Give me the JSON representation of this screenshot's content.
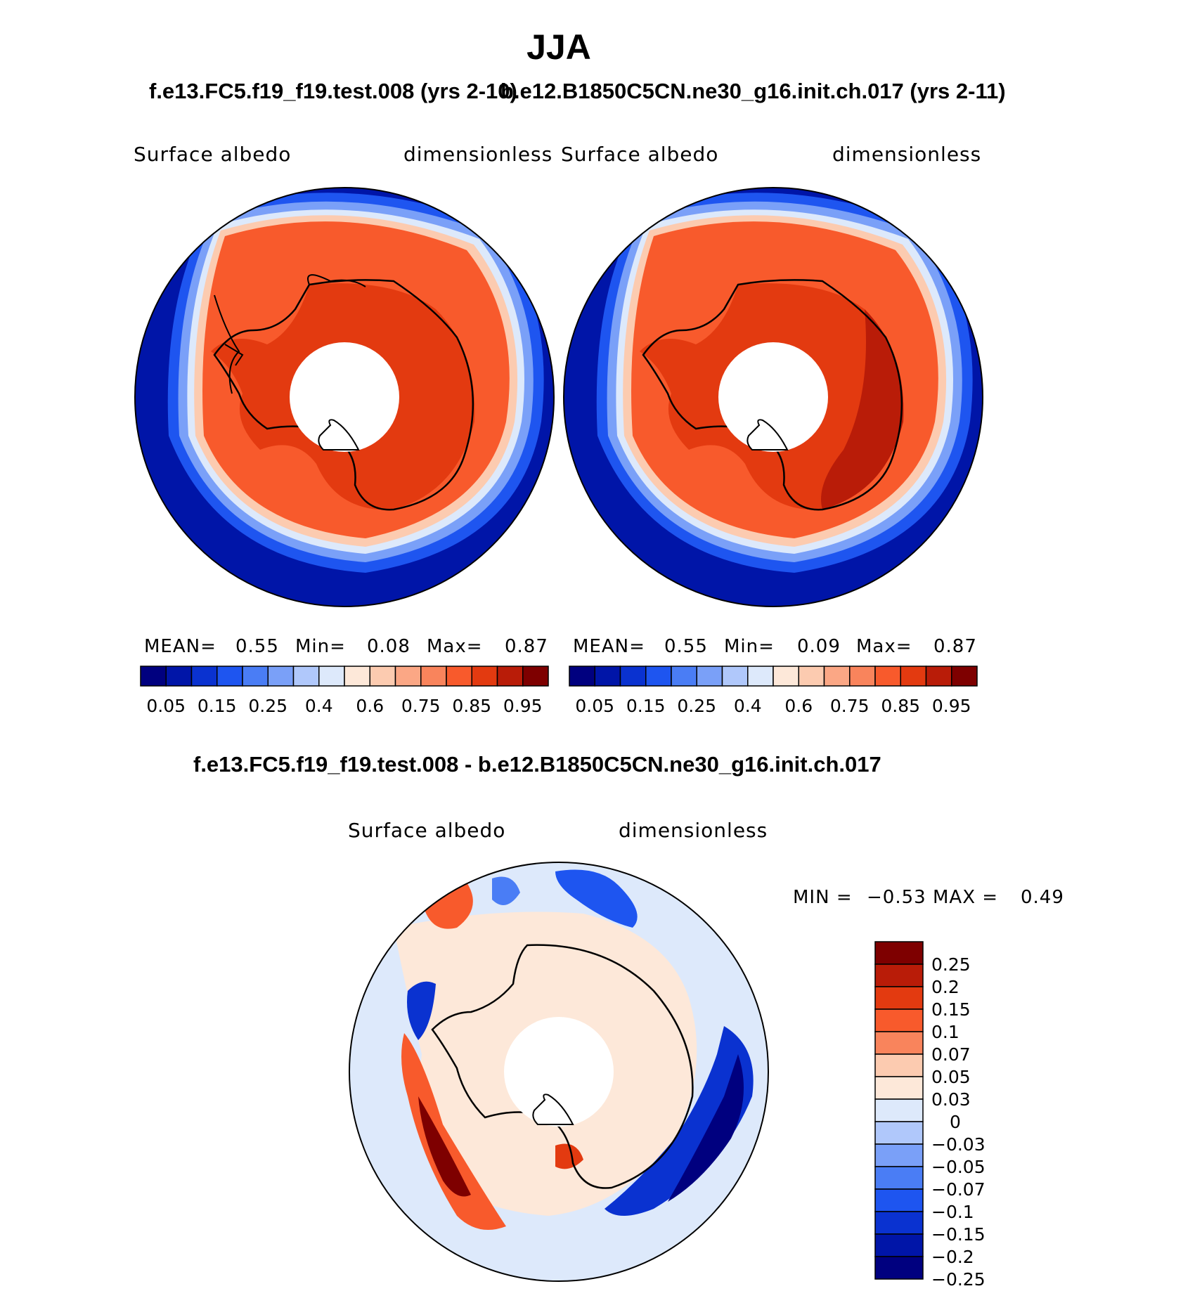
{
  "page": {
    "title": "JJA"
  },
  "panels": [
    {
      "case": "f.e13.FC5.f19_f19.test.008 (yrs 2-10)",
      "variable": "Surface  albedo",
      "units": "dimensionless",
      "stats": {
        "mean_label": "MEAN=",
        "mean": "0.55",
        "min_label": "Min=",
        "min": "0.08",
        "max_label": "Max=",
        "max": "0.87"
      }
    },
    {
      "case": "b.e12.B1850C5CN.ne30_g16.init.ch.017 (yrs 2-11)",
      "variable": "Surface  albedo",
      "units": "dimensionless",
      "stats": {
        "mean_label": "MEAN=",
        "mean": "0.55",
        "min_label": "Min=",
        "min": "0.09",
        "max_label": "Max=",
        "max": "0.87"
      }
    }
  ],
  "diff": {
    "title": "f.e13.FC5.f19_f19.test.008 - b.e12.B1850C5CN.ne30_g16.init.ch.017",
    "variable": "Surface  albedo",
    "units": "dimensionless",
    "stats": {
      "min_label": "MIN =",
      "min": "−0.53",
      "max_label": "MAX =",
      "max": "0.49"
    }
  },
  "chart_data": [
    {
      "type": "heatmap",
      "projection": "south-polar-stereographic",
      "title": "Surface  albedo",
      "units": "dimensionless",
      "colorbar_ticks": [
        "0.05",
        "0.15",
        "0.25",
        "0.4",
        "0.6",
        "0.75",
        "0.85",
        "0.95"
      ],
      "colors": [
        "#00007f",
        "#0015a8",
        "#0a32d0",
        "#1e55f0",
        "#4a7df5",
        "#7aa0f8",
        "#b0c8fb",
        "#dde9fb",
        "#fde8d9",
        "#fccbb0",
        "#fba785",
        "#f9845c",
        "#f85a2c",
        "#e33a10",
        "#b91c08",
        "#7e0000"
      ],
      "mean": 0.55,
      "min": 0.08,
      "max": 0.87
    },
    {
      "type": "heatmap",
      "projection": "south-polar-stereographic",
      "title": "Surface  albedo",
      "units": "dimensionless",
      "colorbar_ticks": [
        "0.05",
        "0.15",
        "0.25",
        "0.4",
        "0.6",
        "0.75",
        "0.85",
        "0.95"
      ],
      "colors": [
        "#00007f",
        "#0015a8",
        "#0a32d0",
        "#1e55f0",
        "#4a7df5",
        "#7aa0f8",
        "#b0c8fb",
        "#dde9fb",
        "#fde8d9",
        "#fccbb0",
        "#fba785",
        "#f9845c",
        "#f85a2c",
        "#e33a10",
        "#b91c08",
        "#7e0000"
      ],
      "mean": 0.55,
      "min": 0.09,
      "max": 0.87
    },
    {
      "type": "heatmap",
      "projection": "south-polar-stereographic",
      "title": "Surface  albedo",
      "units": "dimensionless",
      "colorbar_ticks": [
        "0.25",
        "0.2",
        "0.15",
        "0.1",
        "0.07",
        "0.05",
        "0.03",
        "0",
        "−0.03",
        "−0.05",
        "−0.07",
        "−0.1",
        "−0.15",
        "−0.2",
        "−0.25"
      ],
      "colors": [
        "#7e0000",
        "#b91c08",
        "#e33a10",
        "#f85a2c",
        "#f9845c",
        "#fccbb0",
        "#fde8d9",
        "#dde9fb",
        "#b0c8fb",
        "#7aa0f8",
        "#4a7df5",
        "#1e55f0",
        "#0a32d0",
        "#0015a8",
        "#00007f"
      ],
      "min": -0.53,
      "max": 0.49
    }
  ]
}
